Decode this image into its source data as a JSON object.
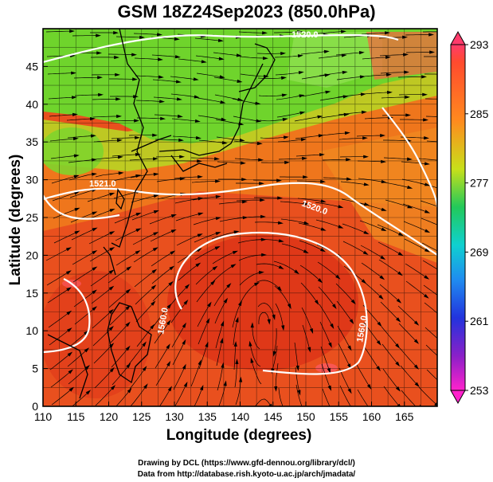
{
  "title": "GSM 18Z24Sep2023 (850.0hPa)",
  "x_label": "Longitude (degrees)",
  "y_label": "Latitude  (degrees)",
  "x_ticks": [
    "110",
    "115",
    "120",
    "125",
    "130",
    "135",
    "140",
    "145",
    "150",
    "155",
    "160",
    "165"
  ],
  "y_ticks": [
    "0",
    "5",
    "10",
    "15",
    "20",
    "25",
    "30",
    "35",
    "40",
    "45"
  ],
  "colorbar_ticks": [
    "293",
    "285",
    "277",
    "269",
    "261",
    "253"
  ],
  "contour_labels": [
    "1520.0",
    "1520.0",
    "1521.0",
    "1560.0",
    "1560.0",
    "1520.0"
  ],
  "credit_line1": "Drawing by DCL (https://www.gfd-dennou.org/library/dcl/)",
  "credit_line2": "Data from http://database.rish.kyoto-u.ac.jp/arch/jmadata/",
  "colors": {
    "warm": "#e8401c",
    "mid": "#f08a1e",
    "cool": "#5fd62e",
    "contour": "#ffffff",
    "colorbar": [
      "#ff3b6b",
      "#ff4a2e",
      "#ff8a1e",
      "#9be31a",
      "#22c95a",
      "#0fd0d0",
      "#1f8cf0",
      "#2233dd",
      "#8a20c8",
      "#ff22cc"
    ]
  }
}
